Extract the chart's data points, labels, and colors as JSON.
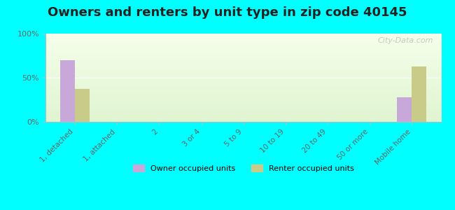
{
  "title": "Owners and renters by unit type in zip code 40145",
  "categories": [
    "1, detached",
    "1, attached",
    "2",
    "3 or 4",
    "5 to 9",
    "10 to 19",
    "20 to 49",
    "50 or more",
    "Mobile home"
  ],
  "owner_values": [
    70,
    0,
    0,
    0,
    0,
    0,
    0,
    0,
    28
  ],
  "renter_values": [
    37,
    0,
    0,
    0,
    0,
    0,
    0,
    0,
    63
  ],
  "owner_color": "#c8a8d8",
  "renter_color": "#c8cc88",
  "outer_bg": "#00ffff",
  "ylim": [
    0,
    100
  ],
  "yticks": [
    0,
    50,
    100
  ],
  "ytick_labels": [
    "0%",
    "50%",
    "100%"
  ],
  "bar_width": 0.35,
  "title_fontsize": 13,
  "legend_labels": [
    "Owner occupied units",
    "Renter occupied units"
  ],
  "watermark": "City-Data.com",
  "n_cats": 9
}
